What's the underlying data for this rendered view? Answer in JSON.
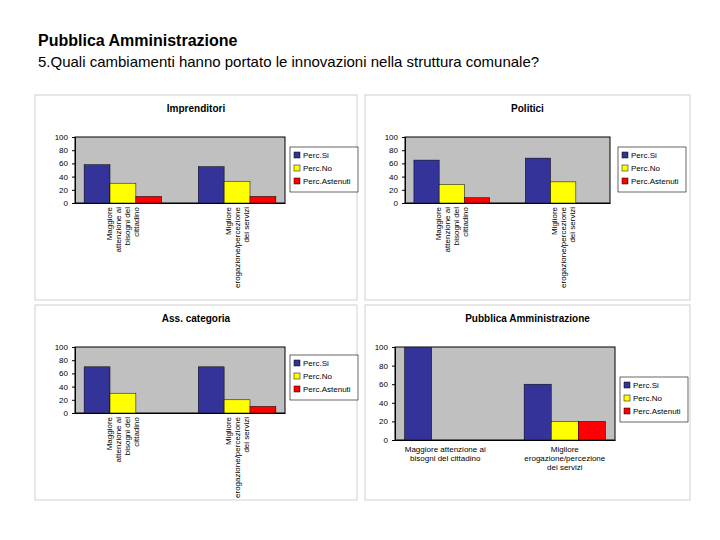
{
  "header": {
    "title": "Pubblica Amministrazione",
    "subtitle": "5.Quali cambiamenti hanno portato le innovazioni nella struttura comunale?"
  },
  "chart_data": [
    {
      "type": "bar",
      "title": "Imprenditori",
      "categories": [
        "Maggiore attenzione ai bisogni del cittadino",
        "Migliore erogazione/percezione dei servizi"
      ],
      "series": [
        {
          "name": "Perc.Si",
          "color": "#333399",
          "values": [
            58,
            55
          ]
        },
        {
          "name": "Perc.No",
          "color": "#ffff00",
          "values": [
            30,
            33
          ]
        },
        {
          "name": "Perc.Astenuti",
          "color": "#ff0000",
          "values": [
            10,
            10
          ]
        }
      ],
      "ylim": [
        0,
        100
      ],
      "yticks": [
        0,
        20,
        40,
        60,
        80,
        100
      ],
      "grid": false,
      "legend": "right"
    },
    {
      "type": "bar",
      "title": "Politici",
      "categories": [
        "Maggiore attenzione ai bisogni del cittadino",
        "Migliore erogazione/percezione dei servizi"
      ],
      "series": [
        {
          "name": "Perc.Si",
          "color": "#333399",
          "values": [
            65,
            68
          ]
        },
        {
          "name": "Perc.No",
          "color": "#ffff00",
          "values": [
            28,
            32
          ]
        },
        {
          "name": "Perc.Astenuti",
          "color": "#ff0000",
          "values": [
            8,
            0
          ]
        }
      ],
      "ylim": [
        0,
        100
      ],
      "yticks": [
        0,
        20,
        40,
        60,
        80,
        100
      ],
      "grid": false,
      "legend": "right"
    },
    {
      "type": "bar",
      "title": "Ass. categoria",
      "categories": [
        "Maggiore attenzione ai bisogni del cittadino",
        "Migliore erogazione/percezione dei servizi"
      ],
      "series": [
        {
          "name": "Perc.Si",
          "color": "#333399",
          "values": [
            70,
            70
          ]
        },
        {
          "name": "Perc.No",
          "color": "#ffff00",
          "values": [
            30,
            20
          ]
        },
        {
          "name": "Perc.Astenuti",
          "color": "#ff0000",
          "values": [
            0,
            10
          ]
        }
      ],
      "ylim": [
        0,
        100
      ],
      "yticks": [
        0,
        20,
        40,
        60,
        80,
        100
      ],
      "grid": false,
      "legend": "right"
    },
    {
      "type": "bar",
      "title": "Pubblica Amministrazione",
      "categories": [
        "Maggiore attenzione ai bisogni del cittadino",
        "Migliore erogazione/percezione dei servizi"
      ],
      "series": [
        {
          "name": "Perc.Si",
          "color": "#333399",
          "values": [
            100,
            60
          ]
        },
        {
          "name": "Perc.No",
          "color": "#ffff00",
          "values": [
            0,
            20
          ]
        },
        {
          "name": "Perc.Astenuti",
          "color": "#ff0000",
          "values": [
            0,
            20
          ]
        }
      ],
      "ylim": [
        0,
        100
      ],
      "yticks": [
        0,
        20,
        40,
        60,
        80,
        100
      ],
      "grid": false,
      "legend": "right"
    }
  ]
}
